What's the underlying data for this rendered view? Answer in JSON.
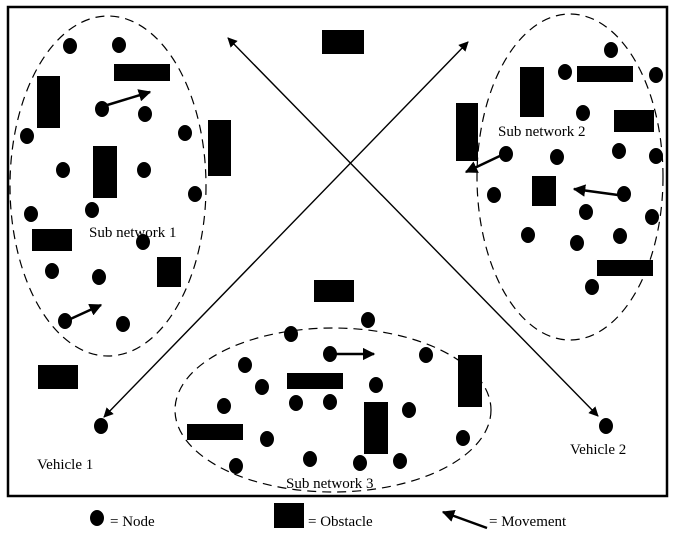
{
  "colors": {
    "ink": "#000000",
    "background": "#ffffff"
  },
  "labels": {
    "subnet1": "Sub network 1",
    "subnet2": "Sub network 2",
    "subnet3": "Sub network 3",
    "vehicle1": "Vehicle 1",
    "vehicle2": "Vehicle 2"
  },
  "legend": {
    "node": "= Node",
    "obstacle": "= Obstacle",
    "movement": "= Movement"
  },
  "icons": {
    "node": "filled-circle",
    "obstacle": "filled-rectangle",
    "movement": "arrow"
  }
}
